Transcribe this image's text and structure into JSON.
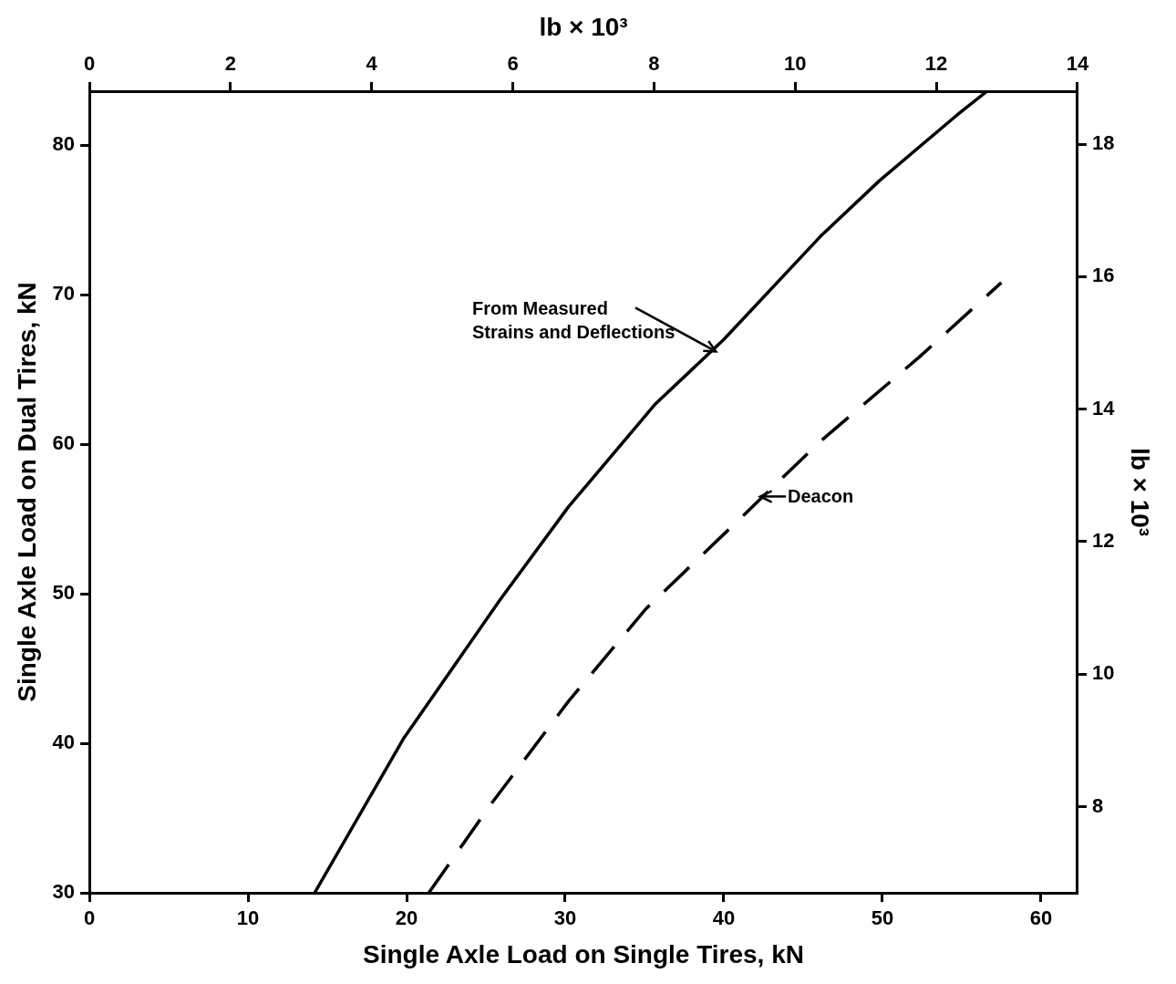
{
  "chart_data": {
    "type": "line",
    "xlabel": "Single Axle Load on Single Tires, kN",
    "ylabel": "Single Axle Load on Dual Tires, kN",
    "x2label": "lb × 10³",
    "y2label": "lb × 10³",
    "xlim": [
      0,
      62.3
    ],
    "xticks": [
      0,
      10,
      20,
      30,
      40,
      50,
      60
    ],
    "x2lim": [
      0,
      14
    ],
    "x2ticks": [
      0,
      2,
      4,
      6,
      8,
      10,
      12,
      14
    ],
    "ylim": [
      30,
      83.6
    ],
    "yticks": [
      30,
      40,
      50,
      60,
      70,
      80
    ],
    "y2lim": [
      6.7,
      18.8
    ],
    "y2ticks": [
      8,
      10,
      12,
      14,
      16,
      18
    ],
    "grid": false,
    "legend": false,
    "marker": "none",
    "series": [
      {
        "color": "#000000",
        "line_style": "solid",
        "x": [
          14.2,
          19.8,
          25.9,
          30.2,
          35.7,
          40.0,
          46.1,
          49.8,
          54.7,
          56.6
        ],
        "values": [
          30,
          40.3,
          49.6,
          55.8,
          62.7,
          67.0,
          73.9,
          77.6,
          82.0,
          83.6
        ]
      },
      {
        "color": "#000000",
        "line_style": "dashed",
        "x": [
          21.4,
          25.3,
          30.2,
          35.1,
          41.2,
          46.1,
          52.3,
          57.5
        ],
        "values": [
          30,
          35.9,
          42.8,
          49.0,
          55.2,
          60.2,
          65.8,
          70.8
        ]
      }
    ],
    "annotations": [
      {
        "text": "From Measured\nStrains and Deflections",
        "x": 39.5,
        "y": 66.2
      },
      {
        "text": "Deacon",
        "x": 42.3,
        "y": 56.5
      }
    ]
  }
}
